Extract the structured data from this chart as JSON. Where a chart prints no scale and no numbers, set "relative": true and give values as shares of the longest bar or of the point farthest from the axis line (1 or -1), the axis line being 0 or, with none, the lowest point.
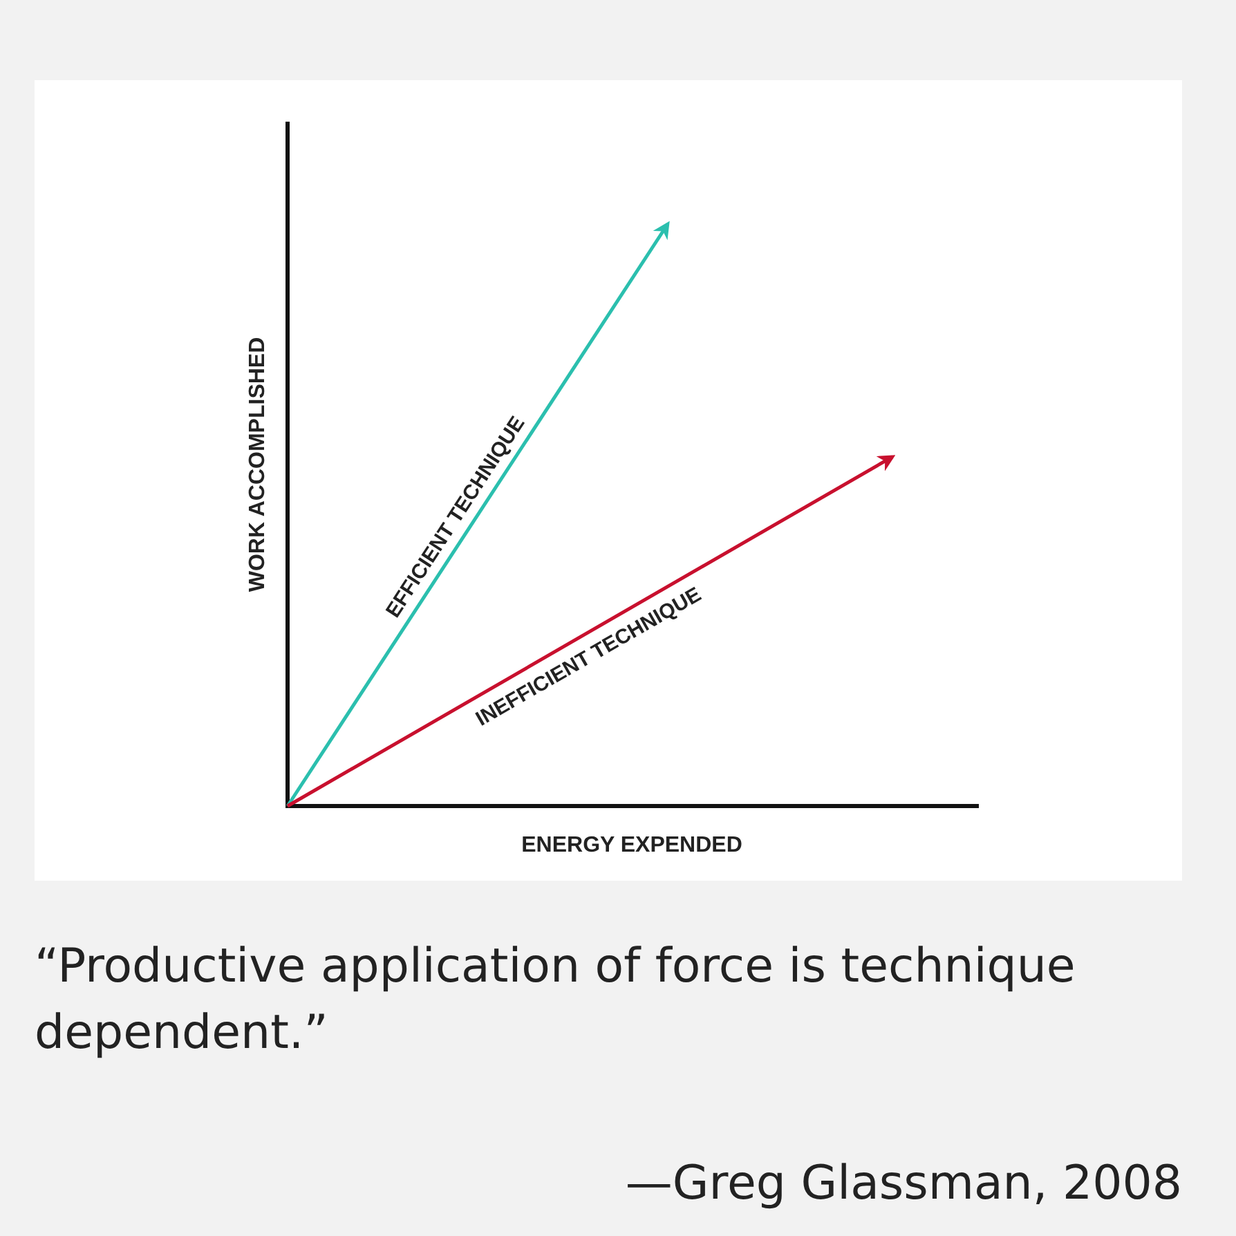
{
  "chart_data": {
    "type": "line",
    "relative": true,
    "xlabel": "ENERGY EXPENDED",
    "ylabel": "WORK ACCOMPLISHED",
    "categories": [
      null,
      null,
      null,
      null,
      null,
      null,
      null,
      null,
      null,
      null,
      null,
      null,
      null,
      null,
      null,
      null,
      null,
      null,
      null,
      null,
      null,
      null,
      null,
      null,
      null,
      null,
      null,
      null,
      null,
      null,
      null,
      null,
      null,
      null,
      null,
      null,
      null,
      null,
      null,
      null,
      null
    ],
    "series": [
      {
        "name": "EFFICIENT TECHNIQUE",
        "color": "#2bbfae",
        "values": [
          0,
          null,
          null,
          null,
          null,
          null,
          null,
          null,
          null,
          null,
          null,
          null,
          null,
          null,
          null,
          null,
          null,
          null,
          null,
          null,
          null,
          null,
          1,
          null,
          null,
          null,
          null,
          null,
          null,
          null,
          null,
          null,
          null,
          null,
          null,
          null,
          null,
          null,
          null,
          null,
          null
        ]
      },
      {
        "name": "INEFFICIENT TECHNIQUE",
        "color": "#c8102e",
        "values": [
          0,
          null,
          null,
          null,
          null,
          null,
          null,
          null,
          null,
          null,
          null,
          null,
          null,
          null,
          null,
          null,
          null,
          null,
          null,
          null,
          null,
          null,
          null,
          null,
          null,
          null,
          null,
          null,
          null,
          null,
          null,
          null,
          null,
          null,
          null,
          0.6,
          null,
          null,
          null,
          null,
          null
        ]
      }
    ],
    "annotations": [
      "“Productive application of force is technique dependent.”",
      "—Greg Glassman, 2008"
    ],
    "legend": false,
    "marker": "none",
    "line_style": "solid"
  }
}
